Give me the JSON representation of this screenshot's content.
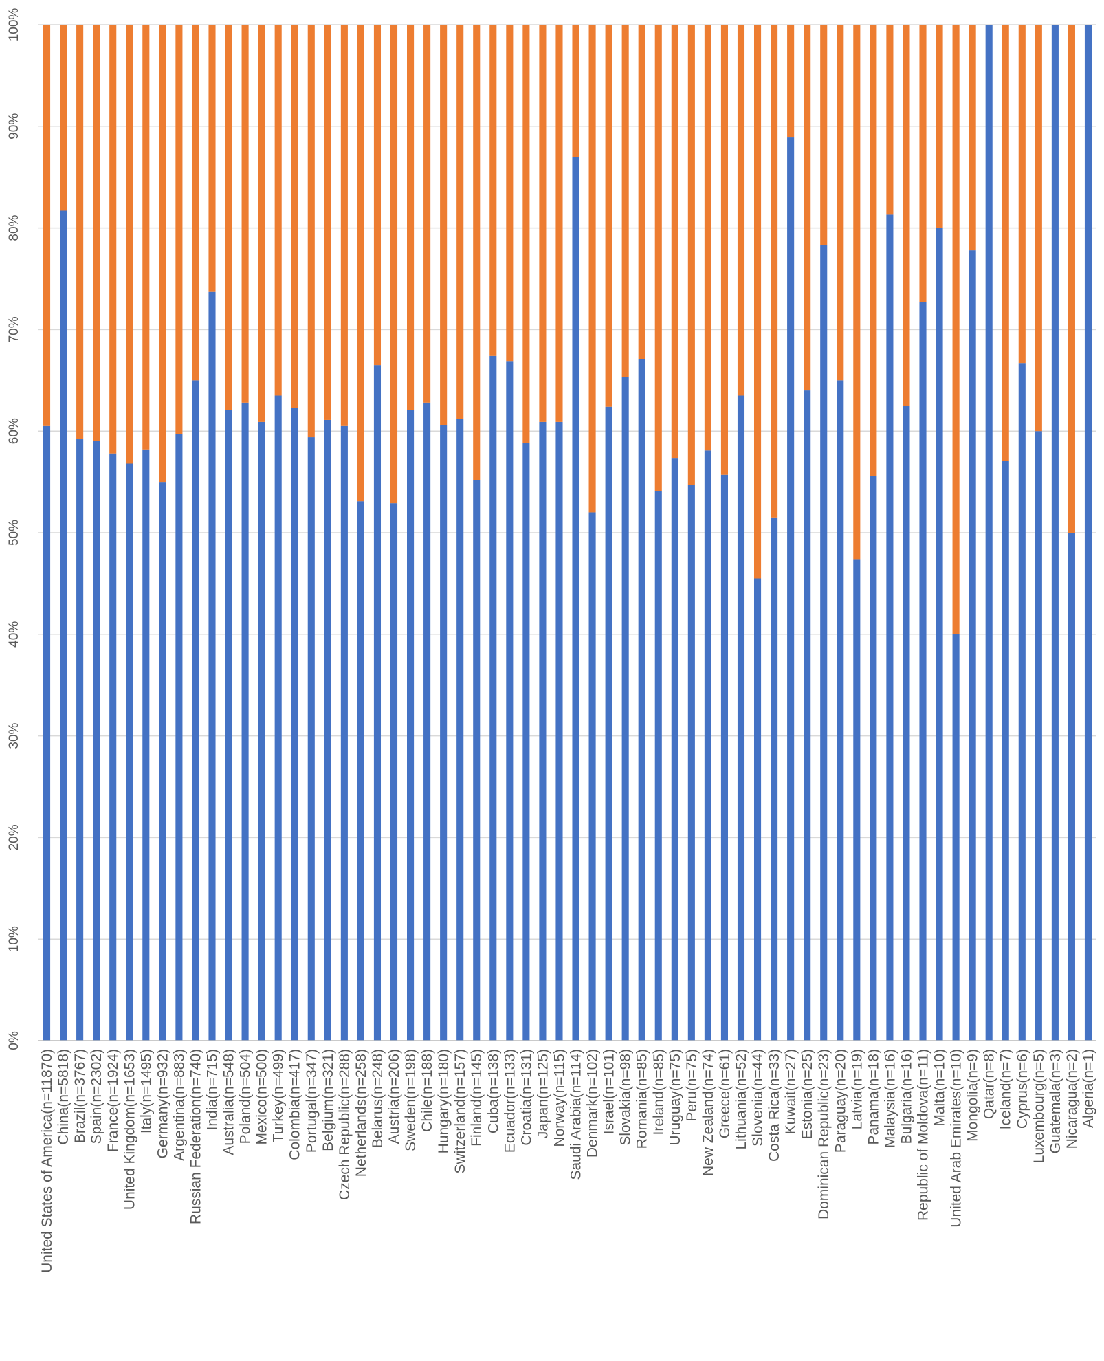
{
  "chart_data": {
    "type": "bar",
    "stacked": true,
    "percent_stacked": true,
    "title": "",
    "xlabel": "",
    "ylabel": "",
    "ylim": [
      0,
      100
    ],
    "yticks": [
      "0%",
      "10%",
      "20%",
      "30%",
      "40%",
      "50%",
      "60%",
      "70%",
      "80%",
      "90%",
      "100%"
    ],
    "grid": true,
    "legend": "none",
    "colors": {
      "series_1": "#4472C4",
      "series_2": "#ED7D31",
      "grid": "#D9D9D9",
      "axis": "#BFBFBF"
    },
    "categories": [
      "United States of America(n=11870)",
      "China(n=5818)",
      "Brazil(n=3767)",
      "Spain(n=2302)",
      "France(n=1924)",
      "United Kingdom(n=1653)",
      "Italy(n=1495)",
      "Germany(n=932)",
      "Argentina(n=883)",
      "Russian Federation(n=740)",
      "India(n=715)",
      "Australia(n=548)",
      "Poland(n=504)",
      "Mexico(n=500)",
      "Turkey(n=499)",
      "Colombia(n=417)",
      "Portugal(n=347)",
      "Belgium(n=321)",
      "Czech Republic(n=288)",
      "Netherlands(n=258)",
      "Belarus(n=248)",
      "Austria(n=206)",
      "Sweden(n=198)",
      "Chile(n=188)",
      "Hungary(n=180)",
      "Switzerland(n=157)",
      "Finland(n=145)",
      "Cuba(n=138)",
      "Ecuador(n=133)",
      "Croatia(n=131)",
      "Japan(n=125)",
      "Norway(n=115)",
      "Saudi Arabia(n=114)",
      "Denmark(n=102)",
      "Israel(n=101)",
      "Slovakia(n=98)",
      "Romania(n=85)",
      "Ireland(n=85)",
      "Uruguay(n=75)",
      "Peru(n=75)",
      "New Zealand(n=74)",
      "Greece(n=61)",
      "Lithuania(n=52)",
      "Slovenia(n=44)",
      "Costa Rica(n=33)",
      "Kuwait(n=27)",
      "Estonia(n=25)",
      "Dominican Republic(n=23)",
      "Paraguay(n=20)",
      "Latvia(n=19)",
      "Panama(n=18)",
      "Malaysia(n=16)",
      "Bulgaria(n=16)",
      "Republic of Moldova(n=11)",
      "Malta(n=10)",
      "United Arab Emirates(n=10)",
      "Mongolia(n=9)",
      "Qatar(n=8)",
      "Iceland(n=7)",
      "Cyprus(n=6)",
      "Luxembourg(n=5)",
      "Guatemala(n=3)",
      "Nicaragua(n=2)",
      "Algeria(n=1)"
    ],
    "series": [
      {
        "values": [
          60.5,
          81.7,
          59.2,
          59.0,
          57.8,
          56.8,
          58.2,
          55.0,
          59.7,
          65.0,
          73.7,
          62.1,
          62.8,
          60.9,
          63.5,
          62.3,
          59.4,
          61.1,
          60.5,
          53.1,
          66.5,
          52.9,
          62.1,
          62.8,
          60.6,
          61.2,
          55.2,
          67.4,
          66.9,
          58.8,
          60.9,
          60.9,
          87.0,
          52.0,
          62.4,
          65.3,
          67.1,
          54.1,
          57.3,
          54.7,
          58.1,
          55.7,
          63.5,
          45.5,
          51.5,
          88.9,
          64.0,
          78.3,
          65.0,
          47.4,
          55.6,
          81.3,
          62.5,
          72.7,
          80.0,
          40.0,
          77.8,
          100.0,
          57.1,
          66.7,
          60.0,
          100.0,
          50.0,
          100.0
        ]
      },
      {
        "values": [
          39.5,
          18.3,
          40.8,
          41.0,
          42.2,
          43.2,
          41.8,
          45.0,
          40.3,
          35.0,
          26.3,
          37.9,
          37.2,
          39.1,
          36.5,
          37.7,
          40.6,
          38.9,
          39.5,
          46.9,
          33.5,
          47.1,
          37.9,
          37.2,
          39.4,
          38.8,
          44.8,
          32.6,
          33.1,
          41.2,
          39.1,
          39.1,
          13.0,
          48.0,
          37.6,
          34.7,
          32.9,
          45.9,
          42.7,
          45.3,
          41.9,
          44.3,
          36.5,
          54.5,
          48.5,
          11.1,
          36.0,
          21.7,
          35.0,
          52.6,
          44.4,
          18.7,
          37.5,
          27.3,
          20.0,
          60.0,
          22.2,
          0.0,
          42.9,
          33.3,
          40.0,
          0.0,
          50.0,
          0.0
        ]
      }
    ]
  }
}
